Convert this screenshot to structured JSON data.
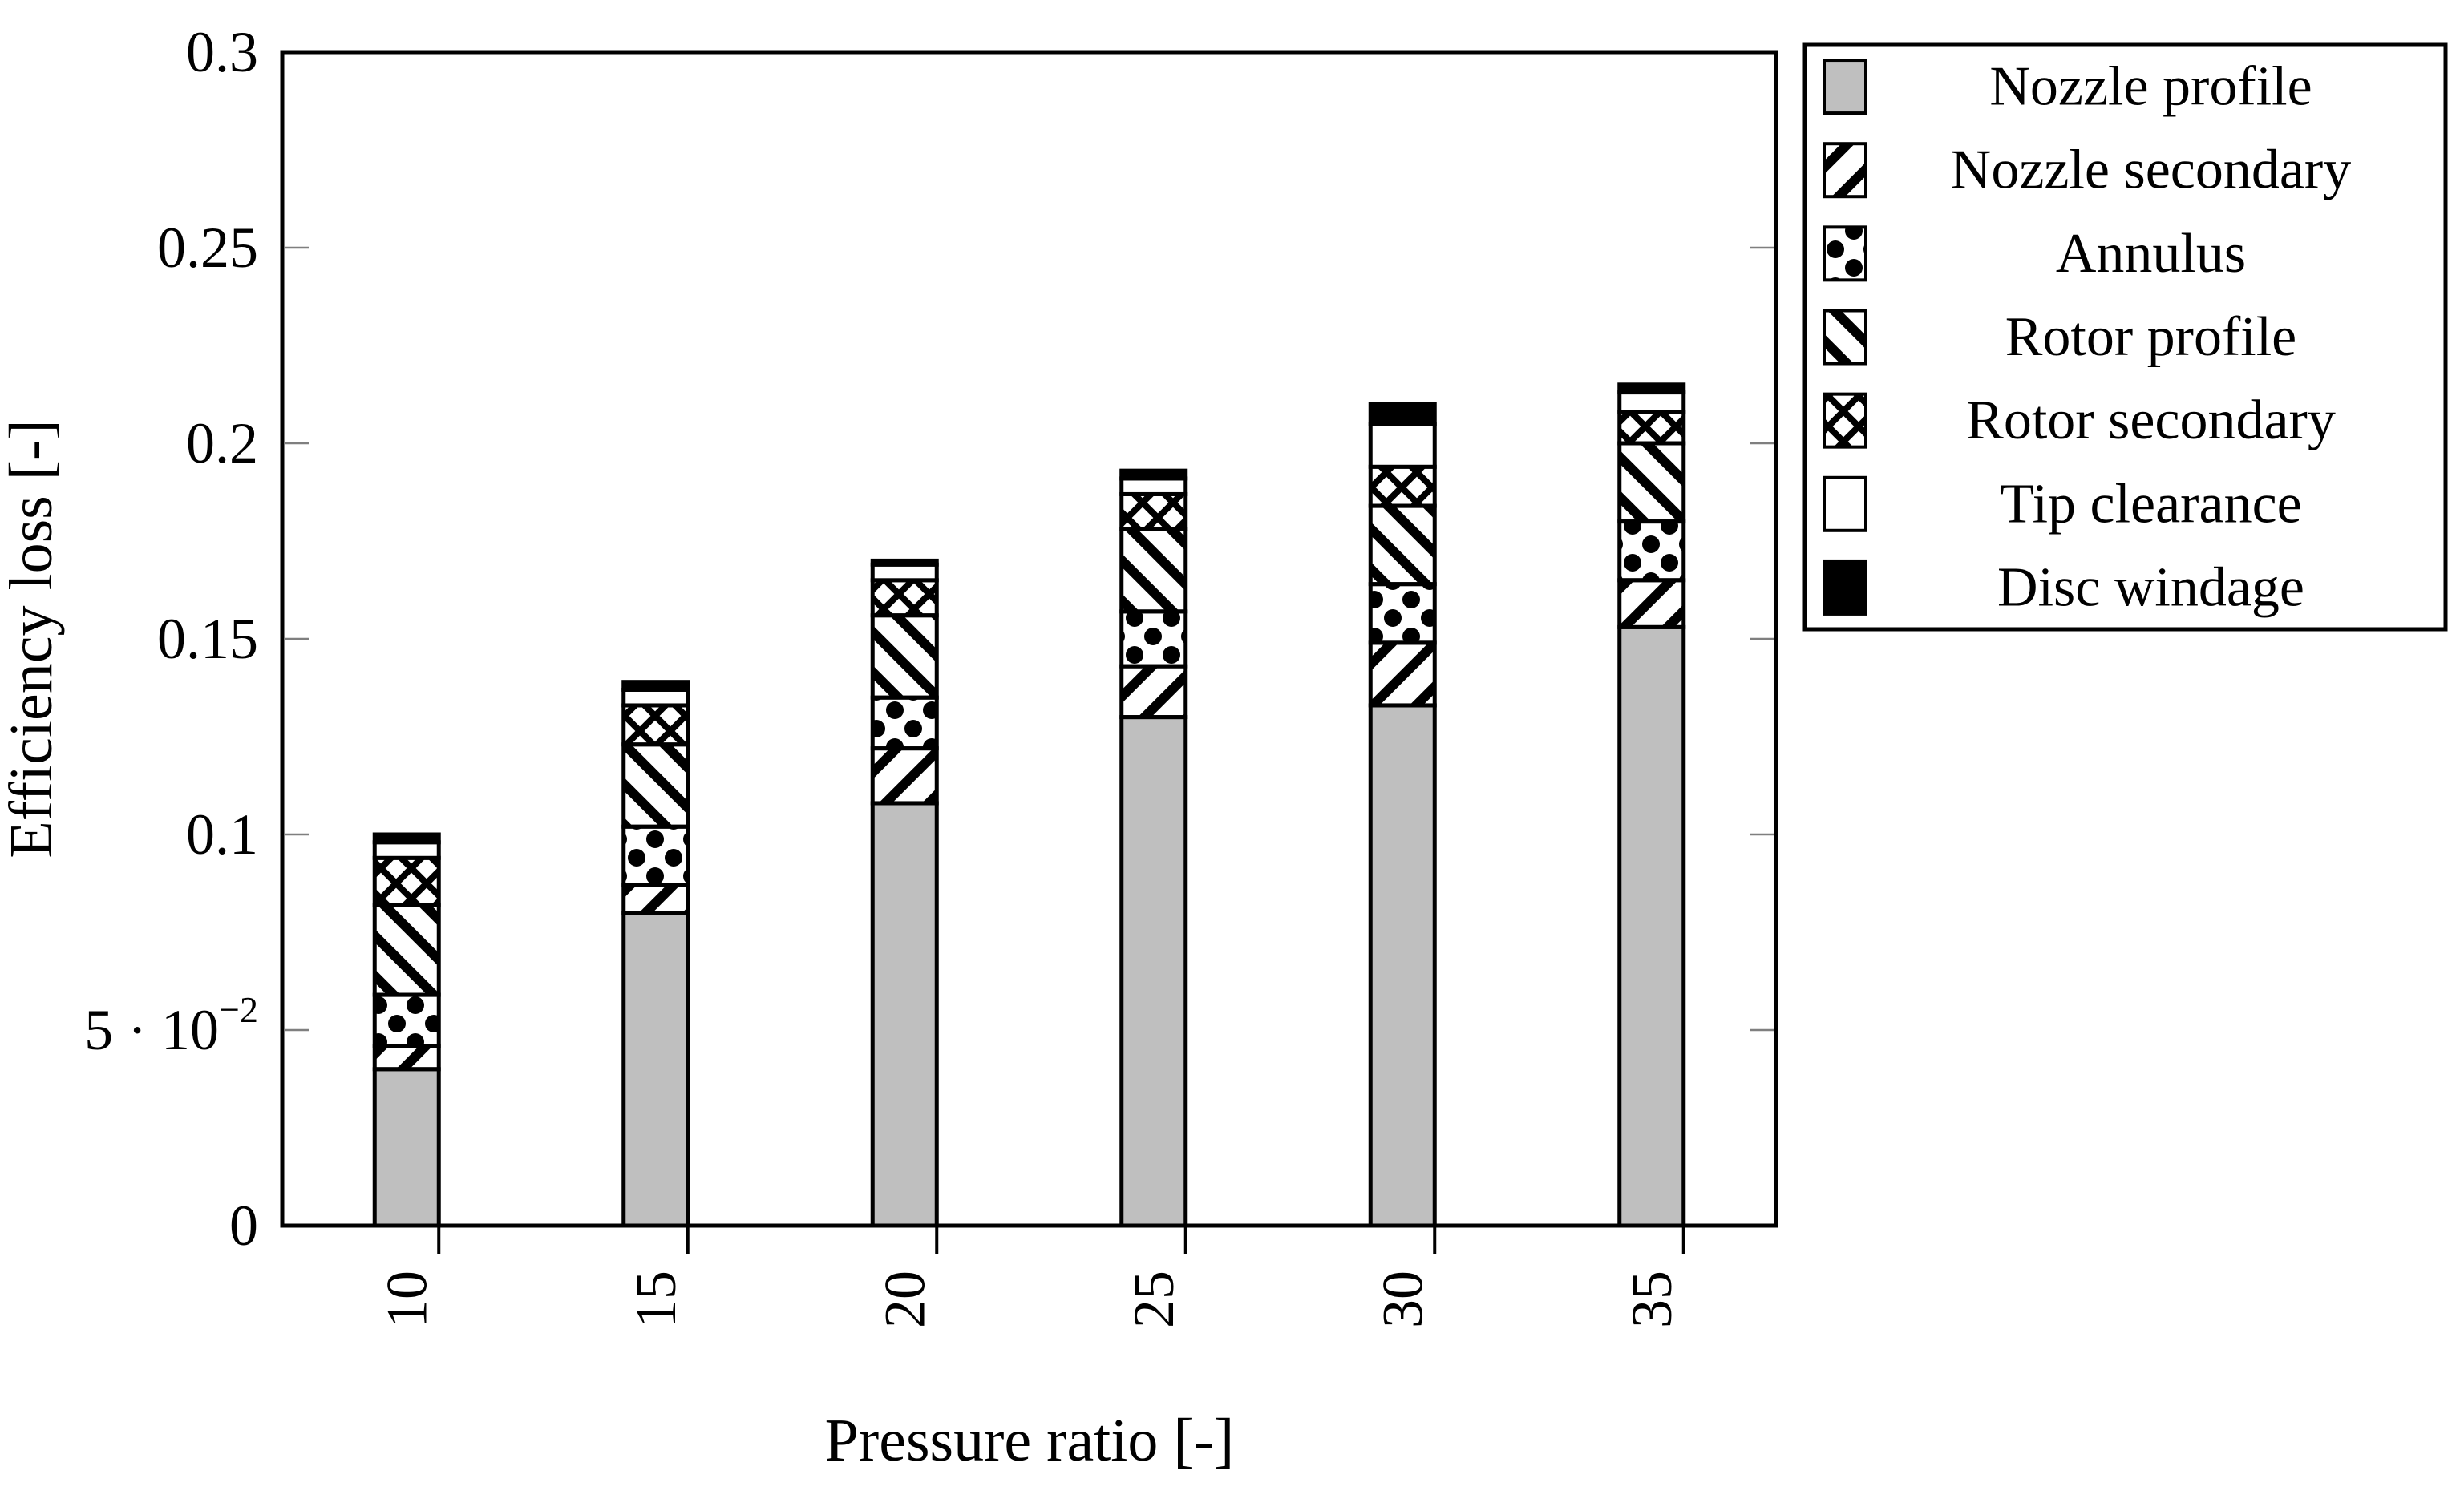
{
  "colors": {
    "ink": "#000000",
    "bar_gray": "#bfbfbf",
    "tick_gray": "#7f7f7f",
    "background": "#ffffff"
  },
  "chart_data": {
    "type": "bar",
    "stacked": true,
    "title": "",
    "xlabel": "Pressure ratio [-]",
    "ylabel": "Efficiency loss [-]",
    "categories": [
      "10",
      "15",
      "20",
      "25",
      "30",
      "35"
    ],
    "series": [
      {
        "name": "Nozzle profile",
        "pattern": "solid-gray",
        "values": [
          0.04,
          0.08,
          0.108,
          0.13,
          0.133,
          0.153
        ]
      },
      {
        "name": "Nozzle secondary",
        "pattern": "diagonal-forward",
        "values": [
          0.006,
          0.007,
          0.014,
          0.013,
          0.016,
          0.012
        ]
      },
      {
        "name": "Annulus",
        "pattern": "dots",
        "values": [
          0.013,
          0.015,
          0.013,
          0.014,
          0.015,
          0.015
        ]
      },
      {
        "name": "Rotor profile",
        "pattern": "diagonal-backward",
        "values": [
          0.023,
          0.021,
          0.021,
          0.021,
          0.02,
          0.02
        ]
      },
      {
        "name": "Rotor secondary",
        "pattern": "crosshatch",
        "values": [
          0.012,
          0.01,
          0.009,
          0.009,
          0.01,
          0.008
        ]
      },
      {
        "name": "Tip clearance",
        "pattern": "white",
        "values": [
          0.004,
          0.004,
          0.004,
          0.004,
          0.011,
          0.005
        ]
      },
      {
        "name": "Disc windage",
        "pattern": "solid-black",
        "values": [
          0.002,
          0.002,
          0.001,
          0.002,
          0.005,
          0.002
        ]
      }
    ],
    "totals": [
      0.1,
      0.139,
      0.17,
      0.193,
      0.21,
      0.215
    ],
    "ylim": [
      0,
      0.3
    ],
    "yticks": [
      {
        "value": 0,
        "label": "0"
      },
      {
        "value": 0.05,
        "label": "5 · 10",
        "sup": "−2"
      },
      {
        "value": 0.1,
        "label": "0.1"
      },
      {
        "value": 0.15,
        "label": "0.15"
      },
      {
        "value": 0.2,
        "label": "0.2"
      },
      {
        "value": 0.25,
        "label": "0.25"
      },
      {
        "value": 0.3,
        "label": "0.3"
      }
    ],
    "grid": false,
    "legend_position": "outside-top-right",
    "legend_entries": [
      "Nozzle profile",
      "Nozzle secondary",
      "Annulus",
      "Rotor profile",
      "Rotor secondary",
      "Tip clearance",
      "Disc windage"
    ]
  }
}
